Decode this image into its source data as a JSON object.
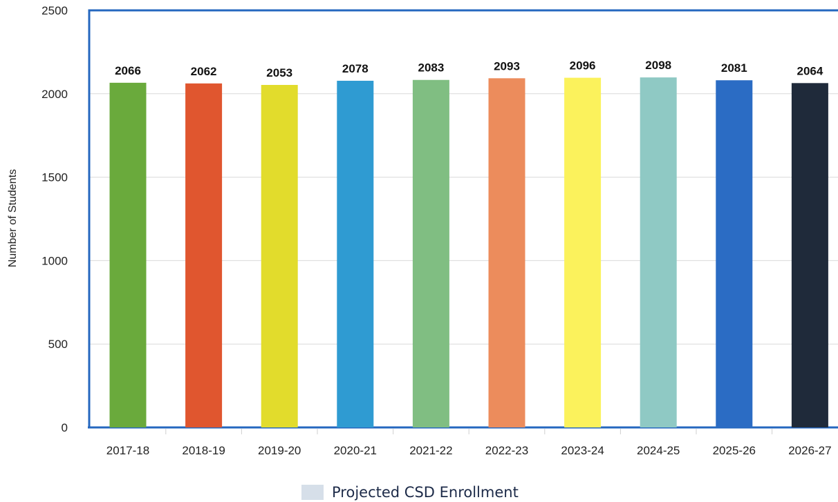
{
  "chart_data": {
    "type": "bar",
    "categories": [
      "2017-18",
      "2018-19",
      "2019-20",
      "2020-21",
      "2021-22",
      "2022-23",
      "2023-24",
      "2024-25",
      "2025-26",
      "2026-27"
    ],
    "values": [
      2066,
      2062,
      2053,
      2078,
      2083,
      2093,
      2096,
      2098,
      2081,
      2064
    ],
    "data_labels": [
      "2066",
      "2062",
      "2053",
      "2078",
      "2083",
      "2093",
      "2096",
      "2098",
      "2081",
      "2064"
    ],
    "colors": [
      "#6aaa3c",
      "#e0562f",
      "#e2dc2c",
      "#2f9bd2",
      "#80be82",
      "#ec8c5c",
      "#fbf25c",
      "#8fc9c4",
      "#2b6cc4",
      "#1f2a3a"
    ],
    "yticks": [
      "0",
      "500",
      "1000",
      "1500",
      "2000",
      "2500"
    ],
    "ylim": [
      0,
      2500
    ],
    "ylabel": "Number of Students",
    "xlabel": "",
    "title": "",
    "grid": true,
    "legend": {
      "position": "bottom",
      "label": "Projected CSD Enrollment",
      "swatch_color": "#d6dfe9"
    },
    "frame_color": "#2467bf"
  }
}
